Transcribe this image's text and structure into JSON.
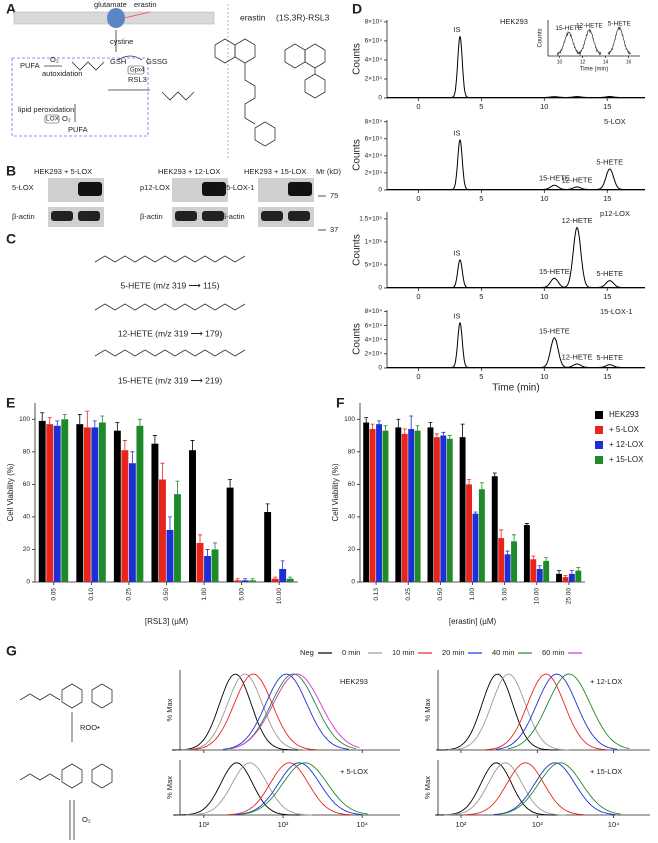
{
  "panel_labels": [
    "A",
    "B",
    "C",
    "D",
    "E",
    "F",
    "G"
  ],
  "panel_a": {
    "labels": [
      "glutamate",
      "erastin",
      "cystine",
      "GSH",
      "GSSG",
      "Gpx4",
      "RSL3",
      "PUFA",
      "O₂",
      "autoxidation",
      "LOX",
      "O₂",
      "PUFA",
      "lipid peroxidation"
    ],
    "compounds": [
      "erastin",
      "(1S,3R)-RSL3"
    ]
  },
  "panel_b": {
    "blots": [
      {
        "title": "HEK293   + 5-LOX",
        "rows": [
          "5-LOX",
          "β-actin"
        ]
      },
      {
        "title": "HEK293   + 12-LOX",
        "rows": [
          "p12-LOX",
          "β-actin"
        ]
      },
      {
        "title": "HEK293   + 15-LOX",
        "rows": [
          "15-LOX-1",
          "β-actin"
        ]
      }
    ],
    "mw_label": "Mr (kD)",
    "mw_markers": [
      75,
      37
    ]
  },
  "panel_c": {
    "structures": [
      "5-HETE (m/z 319 ⟶ 115)",
      "12-HETE (m/z 319 ⟶ 179)",
      "15-HETE (m/z 319 ⟶ 219)"
    ]
  },
  "panel_g": {
    "legend": [
      {
        "name": "Neg",
        "color": "#000000"
      },
      {
        "name": "0 min",
        "color": "#9a9a9a"
      },
      {
        "name": "10 min",
        "color": "#e8251c"
      },
      {
        "name": "20 min",
        "color": "#1f2fd6"
      },
      {
        "name": "40 min",
        "color": "#1f8a2a"
      },
      {
        "name": "60 min",
        "color": "#d62fd6"
      }
    ],
    "scheme": [
      "ROO•",
      "O₂"
    ]
  },
  "chart_data": [
    {
      "type": "chromatogram",
      "title": "HEK293",
      "ylabel": "Counts",
      "xlim": [
        -2.5,
        18
      ],
      "ylim": [
        0,
        82000
      ],
      "xticks": [
        0,
        5,
        10,
        15
      ],
      "yticks": [
        0,
        {
          "value": 20000,
          "label": "2×10⁴"
        },
        {
          "value": 40000,
          "label": "4×10⁴"
        },
        {
          "value": 60000,
          "label": "6×10⁴"
        },
        {
          "value": 80000,
          "label": "8×10⁴"
        }
      ],
      "peaks": [
        {
          "label": "IS",
          "x": 3.3,
          "height": 64000
        }
      ],
      "minor_peaks": [
        {
          "x": 10.8,
          "height": 900
        },
        {
          "x": 12.6,
          "height": 1000
        },
        {
          "x": 15.2,
          "height": 1100
        }
      ],
      "inset": {
        "ylabel": "Counts",
        "xlabel": "Time (min)",
        "xlim": [
          9,
          17
        ],
        "ylim": [
          0,
          1500
        ],
        "xticks": [
          10,
          12,
          14,
          16
        ],
        "peaks": [
          {
            "label": "15-HETE",
            "x": 10.8,
            "height": 900
          },
          {
            "label": "12-HETE",
            "x": 12.6,
            "height": 1000
          },
          {
            "label": "5-HETE",
            "x": 15.2,
            "height": 1100
          }
        ]
      }
    },
    {
      "type": "chromatogram",
      "title": "5-LOX",
      "ylabel": "Counts",
      "xlim": [
        -2.5,
        18
      ],
      "ylim": [
        0,
        82000
      ],
      "xticks": [
        0,
        5,
        10,
        15
      ],
      "yticks": [
        0,
        {
          "value": 20000,
          "label": "2×10⁴"
        },
        {
          "value": 40000,
          "label": "4×10⁴"
        },
        {
          "value": 60000,
          "label": "6×10⁴"
        },
        {
          "value": 80000,
          "label": "8×10⁴"
        }
      ],
      "peaks": [
        {
          "label": "IS",
          "x": 3.3,
          "height": 58000
        },
        {
          "label": "15-HETE",
          "x": 10.8,
          "height": 5000
        },
        {
          "label": "12-HETE",
          "x": 12.6,
          "height": 3000
        },
        {
          "label": "5-HETE",
          "x": 15.2,
          "height": 24000
        }
      ]
    },
    {
      "type": "chromatogram",
      "title": "p12-LOX",
      "ylabel": "Counts",
      "xlim": [
        -2.5,
        18
      ],
      "ylim": [
        0,
        165000
      ],
      "xticks": [
        0,
        5,
        10,
        15
      ],
      "yticks": [
        0,
        {
          "value": 50000,
          "label": "5×10⁴"
        },
        {
          "value": 100000,
          "label": "1×10⁵"
        },
        {
          "value": 150000,
          "label": "1.5×10⁵"
        }
      ],
      "peaks": [
        {
          "label": "IS",
          "x": 3.3,
          "height": 60000
        },
        {
          "label": "15-HETE",
          "x": 10.8,
          "height": 20000
        },
        {
          "label": "12-HETE",
          "x": 12.6,
          "height": 130000
        },
        {
          "label": "5-HETE",
          "x": 15.2,
          "height": 15000
        }
      ]
    },
    {
      "type": "chromatogram",
      "title": "15-LOX-1",
      "ylabel": "Counts",
      "xlabel": "Time (min)",
      "xlim": [
        -2.5,
        18
      ],
      "ylim": [
        0,
        82000
      ],
      "xticks": [
        0,
        5,
        10,
        15
      ],
      "yticks": [
        0,
        {
          "value": 20000,
          "label": "2×10⁴"
        },
        {
          "value": 40000,
          "label": "4×10⁴"
        },
        {
          "value": 60000,
          "label": "6×10⁴"
        },
        {
          "value": 80000,
          "label": "8×10⁴"
        }
      ],
      "peaks": [
        {
          "label": "IS",
          "x": 3.3,
          "height": 63000
        },
        {
          "label": "15-HETE",
          "x": 10.8,
          "height": 42000
        },
        {
          "label": "12-HETE",
          "x": 12.6,
          "height": 5000
        },
        {
          "label": "5-HETE",
          "x": 15.2,
          "height": 4000
        }
      ]
    },
    {
      "type": "bar",
      "ylabel": "Cell Viability (%)",
      "xlabel": "[RSL3] (µM)",
      "ylim": [
        0,
        110
      ],
      "yticks": [
        0,
        20,
        40,
        60,
        80,
        100
      ],
      "categories": [
        "0.05",
        "0.10",
        "0.25",
        "0.50",
        "1.00",
        "5.00",
        "10.00"
      ],
      "series": [
        {
          "color": "#000000",
          "values": [
            99,
            97,
            93,
            85,
            81,
            58,
            43
          ],
          "errors": [
            5,
            6,
            5,
            5,
            6,
            5,
            5
          ]
        },
        {
          "color": "#e8251c",
          "values": [
            97,
            95,
            81,
            63,
            24,
            1,
            2
          ],
          "errors": [
            4,
            10,
            6,
            10,
            5,
            1,
            1
          ]
        },
        {
          "color": "#1f2fd6",
          "values": [
            96,
            95,
            73,
            32,
            16,
            1,
            8
          ],
          "errors": [
            3,
            4,
            7,
            8,
            4,
            1,
            5
          ]
        },
        {
          "color": "#1f8a2a",
          "values": [
            100,
            98,
            96,
            54,
            20,
            1,
            2
          ],
          "errors": [
            3,
            4,
            4,
            8,
            4,
            1,
            1
          ]
        }
      ]
    },
    {
      "type": "bar",
      "ylabel": "Cell Viability (%)",
      "xlabel": "[erastin] (µM)",
      "ylim": [
        0,
        110
      ],
      "yticks": [
        0,
        20,
        40,
        60,
        80,
        100
      ],
      "legend": "right",
      "categories": [
        "0.13",
        "0.25",
        "0.50",
        "1.00",
        "5.00",
        "10.00",
        "25.00"
      ],
      "series": [
        {
          "name": "HEK293",
          "color": "#000000",
          "values": [
            98,
            95,
            95,
            89,
            65,
            35,
            5
          ],
          "errors": [
            3,
            5,
            3,
            8,
            2,
            1,
            2
          ]
        },
        {
          "name": "+ 5-LOX",
          "color": "#e8251c",
          "values": [
            94,
            91,
            89,
            60,
            27,
            14,
            3
          ],
          "errors": [
            3,
            3,
            2,
            3,
            5,
            2,
            1
          ]
        },
        {
          "name": "+ 12-LOX",
          "color": "#1f2fd6",
          "values": [
            97,
            94,
            90,
            42,
            17,
            8,
            5
          ],
          "errors": [
            2,
            8,
            2,
            1,
            2,
            2,
            2
          ]
        },
        {
          "name": "+ 15-LOX",
          "color": "#1f8a2a",
          "values": [
            93,
            93,
            88,
            57,
            25,
            13,
            7
          ],
          "errors": [
            3,
            3,
            2,
            4,
            4,
            2,
            2
          ]
        }
      ]
    },
    {
      "type": "density",
      "title": "HEK293",
      "ylabel": "% Max",
      "xlim": [
        50,
        30000
      ],
      "log": true,
      "xticks": [
        100,
        1000,
        10000
      ],
      "values": [
        250,
        330,
        420,
        1100,
        1350,
        1500
      ]
    },
    {
      "type": "density",
      "title": "+ 12-LOX",
      "ylabel": "% Max",
      "xlim": [
        50,
        30000
      ],
      "log": true,
      "xticks": [
        100,
        1000,
        10000
      ],
      "values": [
        300,
        420,
        1300,
        1800,
        2600,
        null
      ]
    },
    {
      "type": "density",
      "title": "+ 5-LOX",
      "ylabel": "% Max",
      "xlim": [
        50,
        30000
      ],
      "log": true,
      "xticks": [
        {
          "value": 100,
          "label": "10²"
        },
        {
          "value": 1000,
          "label": "10³"
        },
        {
          "value": 10000,
          "label": "10⁴"
        }
      ],
      "values": [
        260,
        380,
        1200,
        1600,
        1900,
        null
      ]
    },
    {
      "type": "density",
      "title": "+ 15-LOX",
      "ylabel": "% Max",
      "xlim": [
        50,
        30000
      ],
      "log": true,
      "xticks": [
        {
          "value": 100,
          "label": "10²"
        },
        {
          "value": 1000,
          "label": "10³"
        },
        {
          "value": 10000,
          "label": "10⁴"
        }
      ],
      "values": [
        290,
        380,
        700,
        1700,
        2000,
        null
      ]
    }
  ]
}
